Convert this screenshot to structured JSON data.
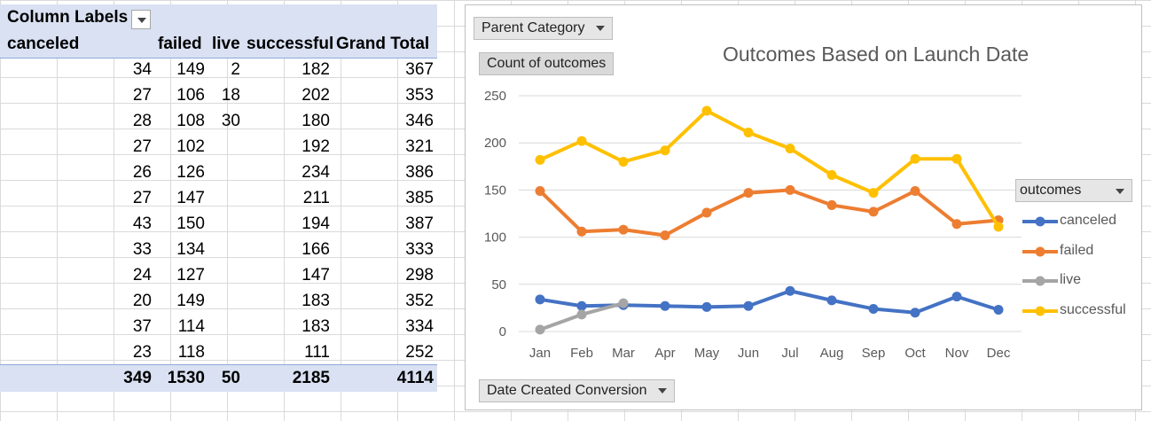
{
  "pivot": {
    "column_labels": "Column Labels",
    "headers": [
      "canceled",
      "failed",
      "live",
      "successful",
      "Grand Total"
    ],
    "rows": [
      [
        "34",
        "149",
        "2",
        "182",
        "367"
      ],
      [
        "27",
        "106",
        "18",
        "202",
        "353"
      ],
      [
        "28",
        "108",
        "30",
        "180",
        "346"
      ],
      [
        "27",
        "102",
        "",
        "192",
        "321"
      ],
      [
        "26",
        "126",
        "",
        "234",
        "386"
      ],
      [
        "27",
        "147",
        "",
        "211",
        "385"
      ],
      [
        "43",
        "150",
        "",
        "194",
        "387"
      ],
      [
        "33",
        "134",
        "",
        "166",
        "333"
      ],
      [
        "24",
        "127",
        "",
        "147",
        "298"
      ],
      [
        "20",
        "149",
        "",
        "183",
        "352"
      ],
      [
        "37",
        "114",
        "",
        "183",
        "334"
      ],
      [
        "23",
        "118",
        "",
        "111",
        "252"
      ]
    ],
    "totals": [
      "349",
      "1530",
      "50",
      "2185",
      "4114"
    ]
  },
  "chart": {
    "filter_button": "Parent Category",
    "value_button": "Count of outcomes",
    "axis_button": "Date Created Conversion",
    "legend_button": "outcomes"
  },
  "chart_data": {
    "type": "line",
    "title": "Outcomes Based on Launch Date",
    "categories": [
      "Jan",
      "Feb",
      "Mar",
      "Apr",
      "May",
      "Jun",
      "Jul",
      "Aug",
      "Sep",
      "Oct",
      "Nov",
      "Dec"
    ],
    "ylim": [
      0,
      250
    ],
    "yticks": [
      "0",
      "50",
      "100",
      "150",
      "200",
      "250"
    ],
    "grid": true,
    "legend_position": "right",
    "series": [
      {
        "name": "canceled",
        "color": "#4472c4",
        "values": [
          34,
          27,
          28,
          27,
          26,
          27,
          43,
          33,
          24,
          20,
          37,
          23
        ]
      },
      {
        "name": "failed",
        "color": "#ed7d31",
        "values": [
          149,
          106,
          108,
          102,
          126,
          147,
          150,
          134,
          127,
          149,
          114,
          118
        ]
      },
      {
        "name": "live",
        "color": "#a5a5a5",
        "values": [
          2,
          18,
          30,
          null,
          null,
          null,
          null,
          null,
          null,
          null,
          null,
          null
        ]
      },
      {
        "name": "successful",
        "color": "#ffc000",
        "values": [
          182,
          202,
          180,
          192,
          234,
          211,
          194,
          166,
          147,
          183,
          183,
          111
        ]
      }
    ]
  }
}
